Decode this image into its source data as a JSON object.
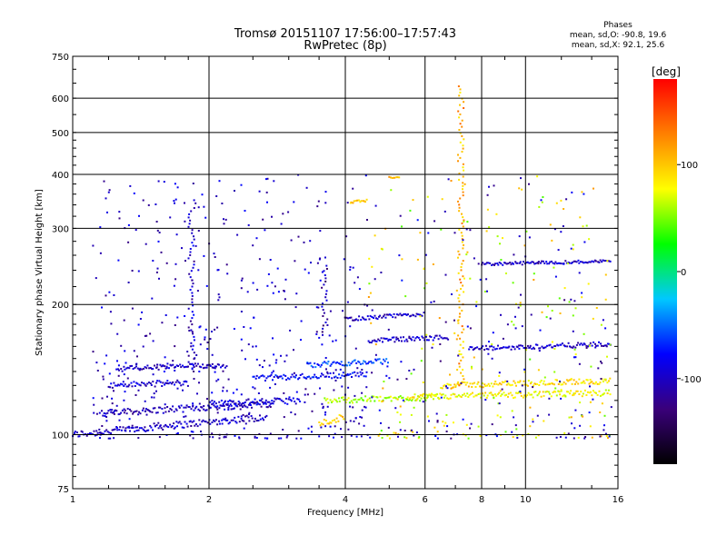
{
  "header": {
    "title_line1": "Tromsø 20151107 17:56:00–17:57:43",
    "title_line2": "RwPretec (8p)"
  },
  "stats": {
    "title": "Phases",
    "line_o": "mean, sd,O: -90.8, 19.6",
    "line_x": "mean, sd,X:  92.1, 25.6"
  },
  "colorbar": {
    "unit_label": "[deg]",
    "range": [
      -180,
      180
    ],
    "tick_values": [
      100,
      0,
      -100
    ],
    "tick_labels": [
      "100",
      "0",
      "-100"
    ],
    "colors": [
      "#000000",
      "#3a007a",
      "#0000ff",
      "#00c8ff",
      "#00ff00",
      "#ffff00",
      "#ff8000",
      "#ff0000"
    ]
  },
  "chart_data": {
    "type": "scatter",
    "xlabel": "Frequency [MHz]",
    "ylabel": "Stationary phase Virtual Height [km]",
    "xscale": "log",
    "yscale": "log",
    "xlim": [
      1,
      16
    ],
    "ylim": [
      75,
      750
    ],
    "x_ticks": [
      1,
      2,
      4,
      6,
      8,
      10,
      16
    ],
    "x_tick_labels": [
      "1",
      "2",
      "4",
      "6",
      "8",
      "10",
      "16"
    ],
    "y_ticks": [
      75,
      100,
      200,
      300,
      400,
      500,
      600,
      750
    ],
    "y_tick_labels": [
      "75",
      "100",
      "200",
      "300",
      "400",
      "500",
      "600",
      "750"
    ],
    "grid": true,
    "color_quantity": "phase [deg]",
    "traces": [
      {
        "x_range": [
          1.0,
          2.7
        ],
        "height": [
          100,
          110
        ],
        "phase": -100
      },
      {
        "x_range": [
          1.15,
          2.8
        ],
        "height": [
          112,
          118
        ],
        "phase": -105
      },
      {
        "x_range": [
          1.2,
          1.8
        ],
        "height": [
          130,
          132
        ],
        "phase": -95
      },
      {
        "x_range": [
          1.25,
          2.2
        ],
        "height": [
          142,
          145
        ],
        "phase": -100
      },
      {
        "x_range": [
          2.0,
          3.2
        ],
        "height": [
          118,
          120
        ],
        "phase": -90
      },
      {
        "x_range": [
          2.5,
          4.5
        ],
        "height": [
          135,
          138
        ],
        "phase": -80
      },
      {
        "x_range": [
          3.3,
          5.0
        ],
        "height": [
          145,
          148
        ],
        "phase": -60
      },
      {
        "x_range": [
          3.6,
          6.5
        ],
        "height": [
          120,
          122
        ],
        "phase": 60
      },
      {
        "x_range": [
          4.5,
          6.8
        ],
        "height": [
          165,
          168
        ],
        "phase": -100
      },
      {
        "x_range": [
          4.0,
          6.0
        ],
        "height": [
          185,
          190
        ],
        "phase": -100
      },
      {
        "x_range": [
          5.5,
          15.5
        ],
        "height": [
          122,
          125
        ],
        "phase": 80
      },
      {
        "x_range": [
          6.5,
          15.5
        ],
        "height": [
          130,
          133
        ],
        "phase": 90
      },
      {
        "x_range": [
          7.5,
          15.5
        ],
        "height": [
          158,
          162
        ],
        "phase": -100
      },
      {
        "x_range": [
          8.0,
          15.5
        ],
        "height": [
          248,
          252
        ],
        "phase": -100
      },
      {
        "x_range": [
          3.5,
          4.0
        ],
        "height": [
          106,
          110
        ],
        "phase": 100
      },
      {
        "x_range": [
          5.0,
          5.3
        ],
        "height": [
          393,
          396
        ],
        "phase": 105
      },
      {
        "x_range": [
          4.1,
          4.5
        ],
        "height": [
          345,
          348
        ],
        "phase": 100
      }
    ],
    "vertical_traces": [
      {
        "x": 1.83,
        "height_range": [
          140,
          340
        ],
        "phase": -100
      },
      {
        "x": 3.6,
        "height_range": [
          170,
          250
        ],
        "phase": -110
      },
      {
        "x": 7.2,
        "height_range": [
          130,
          650
        ],
        "phase": 110
      }
    ]
  }
}
